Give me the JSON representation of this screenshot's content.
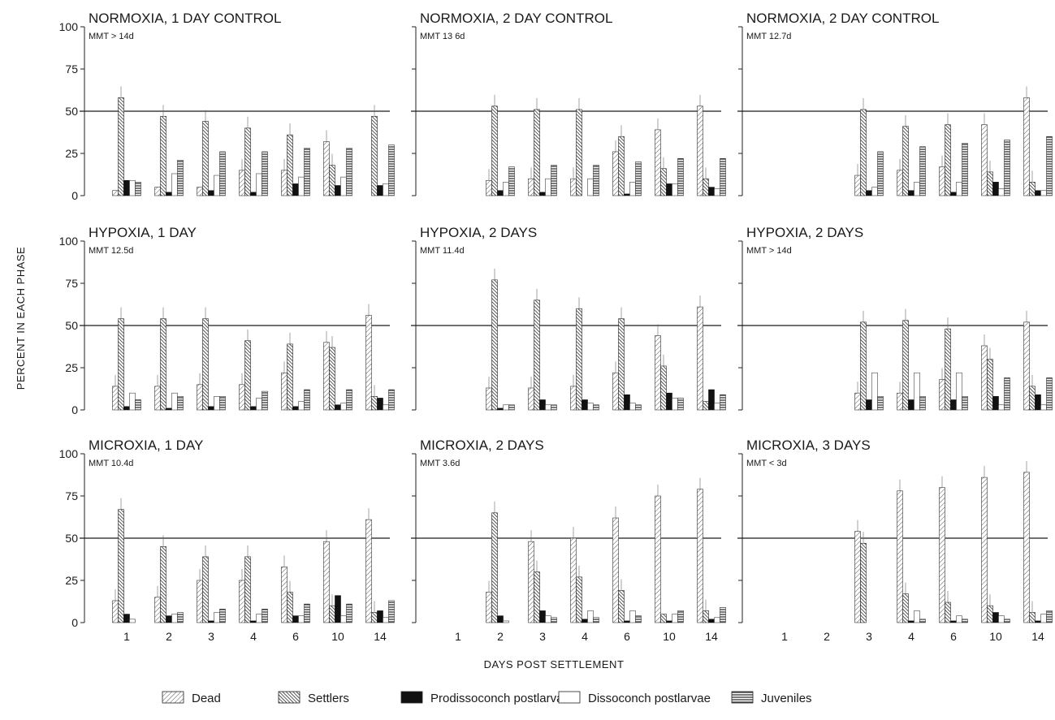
{
  "figure": {
    "ylabel": "PERCENT IN EACH PHASE",
    "xlabel": "DAYS POST SETTLEMENT"
  },
  "legend": [
    {
      "key": "dead",
      "label": "Dead",
      "pattern": "fine-diagonal"
    },
    {
      "key": "settlers",
      "label": "Settlers",
      "pattern": "dense-diagonal"
    },
    {
      "key": "prodisso",
      "label": "Prodissoconch postlarvae",
      "pattern": "solid"
    },
    {
      "key": "disso",
      "label": "Dissoconch postlarvae",
      "pattern": "open"
    },
    {
      "key": "juv",
      "label": "Juveniles",
      "pattern": "horizontal"
    }
  ],
  "chart_data": [
    {
      "type": "bar",
      "title": "NORMOXIA, 1 DAY CONTROL",
      "mmt": "MMT > 14d",
      "ylim": [
        0,
        100
      ],
      "yticks": [
        0,
        25,
        50,
        75,
        100
      ],
      "reference_line": 50,
      "categories": [
        "1",
        "2",
        "3",
        "4",
        "6",
        "10",
        "14"
      ],
      "series": [
        {
          "name": "Dead",
          "values": [
            3,
            5,
            5,
            15,
            15,
            32,
            0
          ]
        },
        {
          "name": "Settlers",
          "values": [
            58,
            47,
            44,
            40,
            36,
            18,
            47
          ]
        },
        {
          "name": "Prodissoconch postlarvae",
          "values": [
            9,
            2,
            3,
            2,
            7,
            6,
            6
          ]
        },
        {
          "name": "Dissoconch postlarvae",
          "values": [
            9,
            13,
            12,
            13,
            11,
            11,
            7
          ]
        },
        {
          "name": "Juveniles",
          "values": [
            8,
            21,
            26,
            26,
            28,
            28,
            30
          ]
        }
      ]
    },
    {
      "type": "bar",
      "title": "NORMOXIA, 2 DAY CONTROL",
      "mmt": "MMT 13 6d",
      "ylim": [
        0,
        100
      ],
      "yticks": [
        0,
        25,
        50,
        75,
        100
      ],
      "reference_line": 50,
      "categories": [
        "1",
        "2",
        "3",
        "4",
        "6",
        "10",
        "14"
      ],
      "series": [
        {
          "name": "Dead",
          "values": [
            0,
            9,
            10,
            10,
            26,
            39,
            53
          ]
        },
        {
          "name": "Settlers",
          "values": [
            0,
            53,
            51,
            51,
            35,
            16,
            10
          ]
        },
        {
          "name": "Prodissoconch postlarvae",
          "values": [
            0,
            3,
            2,
            0,
            1,
            7,
            5
          ]
        },
        {
          "name": "Dissoconch postlarvae",
          "values": [
            0,
            8,
            10,
            10,
            8,
            7,
            4
          ]
        },
        {
          "name": "Juveniles",
          "values": [
            0,
            17,
            18,
            18,
            20,
            22,
            22
          ]
        }
      ]
    },
    {
      "type": "bar",
      "title": "NORMOXIA, 2 DAY CONTROL",
      "mmt": "MMT 12.7d",
      "ylim": [
        0,
        100
      ],
      "yticks": [
        0,
        25,
        50,
        75,
        100
      ],
      "reference_line": 50,
      "categories": [
        "1",
        "2",
        "3",
        "4",
        "6",
        "10",
        "14"
      ],
      "series": [
        {
          "name": "Dead",
          "values": [
            0,
            0,
            12,
            15,
            17,
            42,
            58
          ]
        },
        {
          "name": "Settlers",
          "values": [
            0,
            0,
            51,
            41,
            42,
            14,
            8
          ]
        },
        {
          "name": "Prodissoconch postlarvae",
          "values": [
            0,
            0,
            3,
            3,
            2,
            8,
            3
          ]
        },
        {
          "name": "Dissoconch postlarvae",
          "values": [
            0,
            0,
            5,
            8,
            8,
            4,
            3
          ]
        },
        {
          "name": "Juveniles",
          "values": [
            0,
            0,
            26,
            29,
            31,
            33,
            35
          ]
        }
      ]
    },
    {
      "type": "bar",
      "title": "HYPOXIA, 1 DAY",
      "mmt": "MMT 12.5d",
      "ylim": [
        0,
        100
      ],
      "yticks": [
        0,
        25,
        50,
        75,
        100
      ],
      "reference_line": 50,
      "categories": [
        "1",
        "2",
        "3",
        "4",
        "6",
        "10",
        "14"
      ],
      "series": [
        {
          "name": "Dead",
          "values": [
            14,
            14,
            15,
            15,
            22,
            40,
            56
          ]
        },
        {
          "name": "Settlers",
          "values": [
            54,
            54,
            54,
            41,
            39,
            37,
            8
          ]
        },
        {
          "name": "Prodissoconch postlarvae",
          "values": [
            2,
            1,
            2,
            2,
            2,
            3,
            7
          ]
        },
        {
          "name": "Dissoconch postlarvae",
          "values": [
            10,
            10,
            8,
            7,
            5,
            4,
            3
          ]
        },
        {
          "name": "Juveniles",
          "values": [
            6,
            8,
            8,
            11,
            12,
            12,
            12
          ]
        }
      ]
    },
    {
      "type": "bar",
      "title": "HYPOXIA, 2 DAYS",
      "mmt": "MMT 11.4d",
      "ylim": [
        0,
        100
      ],
      "yticks": [
        0,
        25,
        50,
        75,
        100
      ],
      "reference_line": 50,
      "categories": [
        "1",
        "2",
        "3",
        "4",
        "6",
        "10",
        "14"
      ],
      "series": [
        {
          "name": "Dead",
          "values": [
            0,
            13,
            13,
            14,
            22,
            44,
            61
          ]
        },
        {
          "name": "Settlers",
          "values": [
            0,
            77,
            65,
            60,
            54,
            26,
            5
          ]
        },
        {
          "name": "Prodissoconch postlarvae",
          "values": [
            0,
            1,
            6,
            6,
            9,
            10,
            12
          ]
        },
        {
          "name": "Dissoconch postlarvae",
          "values": [
            0,
            3,
            3,
            4,
            4,
            7,
            4
          ]
        },
        {
          "name": "Juveniles",
          "values": [
            0,
            3,
            3,
            3,
            3,
            7,
            9
          ]
        }
      ]
    },
    {
      "type": "bar",
      "title": "HYPOXIA, 2 DAYS",
      "mmt": "MMT > 14d",
      "ylim": [
        0,
        100
      ],
      "yticks": [
        0,
        25,
        50,
        75,
        100
      ],
      "reference_line": 50,
      "categories": [
        "1",
        "2",
        "3",
        "4",
        "6",
        "10",
        "14"
      ],
      "series": [
        {
          "name": "Dead",
          "values": [
            0,
            0,
            10,
            10,
            18,
            38,
            52
          ]
        },
        {
          "name": "Settlers",
          "values": [
            0,
            0,
            52,
            53,
            48,
            30,
            14
          ]
        },
        {
          "name": "Prodissoconch postlarvae",
          "values": [
            0,
            0,
            6,
            6,
            6,
            8,
            9
          ]
        },
        {
          "name": "Dissoconch postlarvae",
          "values": [
            0,
            0,
            22,
            22,
            22,
            3,
            3
          ]
        },
        {
          "name": "Juveniles",
          "values": [
            0,
            0,
            8,
            8,
            8,
            19,
            19
          ]
        }
      ]
    },
    {
      "type": "bar",
      "title": "MICROXIA, 1 DAY",
      "mmt": "MMT 10.4d",
      "ylim": [
        0,
        100
      ],
      "yticks": [
        0,
        25,
        50,
        75,
        100
      ],
      "reference_line": 50,
      "categories": [
        "1",
        "2",
        "3",
        "4",
        "6",
        "10",
        "14"
      ],
      "series": [
        {
          "name": "Dead",
          "values": [
            13,
            15,
            25,
            25,
            33,
            48,
            61
          ]
        },
        {
          "name": "Settlers",
          "values": [
            67,
            45,
            39,
            39,
            18,
            10,
            6
          ]
        },
        {
          "name": "Prodissoconch postlarvae",
          "values": [
            5,
            4,
            1,
            1,
            4,
            16,
            7
          ]
        },
        {
          "name": "Dissoconch postlarvae",
          "values": [
            2,
            5,
            6,
            5,
            4,
            4,
            3
          ]
        },
        {
          "name": "Juveniles",
          "values": [
            0,
            6,
            8,
            8,
            11,
            11,
            13
          ]
        }
      ]
    },
    {
      "type": "bar",
      "title": "MICROXIA, 2 DAYS",
      "mmt": "MMT 3.6d",
      "ylim": [
        0,
        100
      ],
      "yticks": [
        0,
        25,
        50,
        75,
        100
      ],
      "reference_line": 50,
      "categories": [
        "1",
        "2",
        "3",
        "4",
        "6",
        "10",
        "14"
      ],
      "series": [
        {
          "name": "Dead",
          "values": [
            0,
            18,
            48,
            50,
            62,
            75,
            79
          ]
        },
        {
          "name": "Settlers",
          "values": [
            0,
            65,
            30,
            27,
            19,
            5,
            7
          ]
        },
        {
          "name": "Prodissoconch postlarvae",
          "values": [
            0,
            4,
            7,
            2,
            1,
            1,
            2
          ]
        },
        {
          "name": "Dissoconch postlarvae",
          "values": [
            0,
            1,
            4,
            7,
            7,
            5,
            3
          ]
        },
        {
          "name": "Juveniles",
          "values": [
            0,
            0,
            3,
            3,
            4,
            7,
            9
          ]
        }
      ]
    },
    {
      "type": "bar",
      "title": "MICROXIA, 3 DAYS",
      "mmt": "MMT < 3d",
      "ylim": [
        0,
        100
      ],
      "yticks": [
        0,
        25,
        50,
        75,
        100
      ],
      "reference_line": 50,
      "categories": [
        "1",
        "2",
        "3",
        "4",
        "6",
        "10",
        "14"
      ],
      "series": [
        {
          "name": "Dead",
          "values": [
            0,
            0,
            54,
            78,
            80,
            86,
            89
          ]
        },
        {
          "name": "Settlers",
          "values": [
            0,
            0,
            47,
            17,
            12,
            10,
            6
          ]
        },
        {
          "name": "Prodissoconch postlarvae",
          "values": [
            0,
            0,
            0,
            1,
            1,
            6,
            1
          ]
        },
        {
          "name": "Dissoconch postlarvae",
          "values": [
            0,
            0,
            0,
            7,
            4,
            4,
            5
          ]
        },
        {
          "name": "Juveniles",
          "values": [
            0,
            0,
            0,
            2,
            2,
            2,
            7
          ]
        }
      ]
    }
  ]
}
